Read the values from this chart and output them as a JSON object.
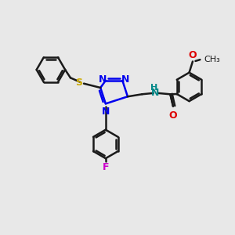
{
  "background_color": "#e8e8e8",
  "bond_color": "#1a1a1a",
  "triazole_N_color": "#0000ee",
  "S_color": "#ccaa00",
  "F_color": "#cc00cc",
  "O_color": "#dd0000",
  "NH_color": "#008888",
  "line_width": 1.8,
  "figsize": [
    3.0,
    3.0
  ],
  "dpi": 100,
  "xlim": [
    0,
    10
  ],
  "ylim": [
    0,
    10
  ]
}
